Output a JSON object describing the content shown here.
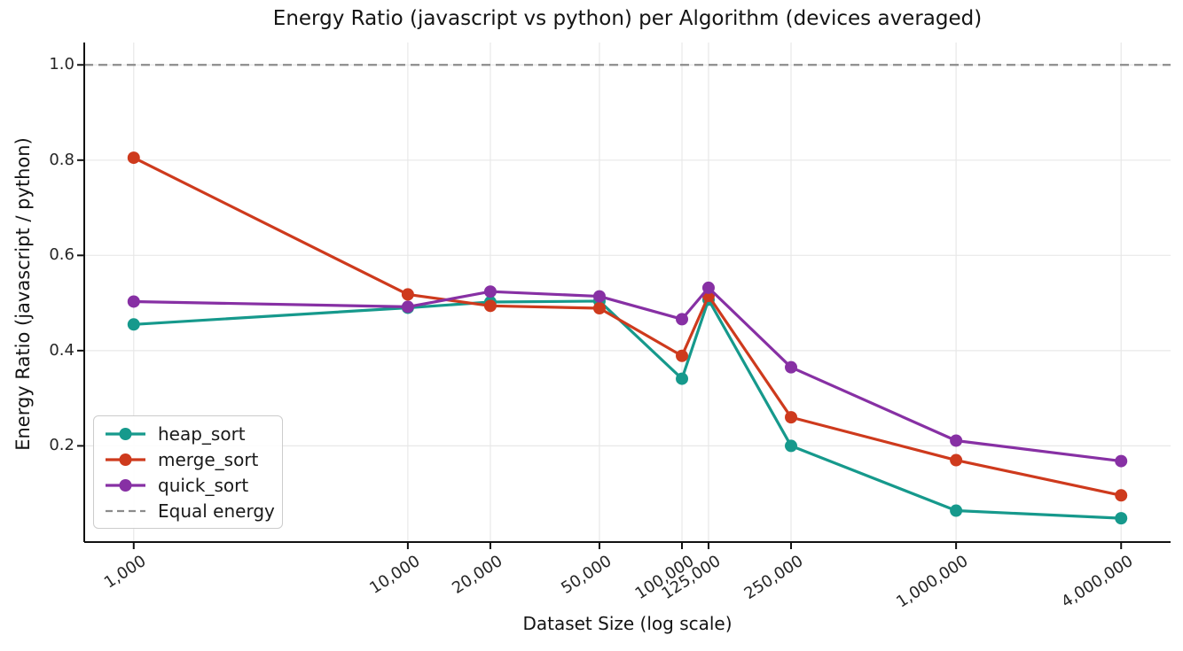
{
  "chart_data": {
    "type": "line",
    "title": "Energy Ratio (javascript vs python) per Algorithm (devices averaged)",
    "xlabel": "Dataset Size (log scale)",
    "ylabel": "Energy Ratio (javascript / python)",
    "x_scale": "log",
    "x": [
      1000,
      10000,
      20000,
      50000,
      100000,
      125000,
      250000,
      1000000,
      4000000
    ],
    "x_tick_labels": [
      "1,000",
      "10,000",
      "20,000",
      "50,000",
      "100,000",
      "125,000",
      "250,000",
      "1,000,000",
      "4,000,000"
    ],
    "y_ticks": [
      0.2,
      0.4,
      0.6,
      0.8,
      1.0
    ],
    "y_tick_labels": [
      "0.2",
      "0.4",
      "0.6",
      "0.8",
      "1.0"
    ],
    "xlim": [
      660,
      6060000
    ],
    "ylim": [
      -0.002,
      1.047
    ],
    "grid": true,
    "legend_position": "lower left",
    "series": [
      {
        "name": "heap_sort",
        "color": "#16998C",
        "marker": "circle",
        "values": [
          0.455,
          0.49,
          0.502,
          0.504,
          0.341,
          0.507,
          0.2,
          0.064,
          0.048
        ]
      },
      {
        "name": "merge_sort",
        "color": "#CE3A1D",
        "marker": "circle",
        "values": [
          0.805,
          0.518,
          0.494,
          0.489,
          0.389,
          0.515,
          0.26,
          0.17,
          0.096
        ]
      },
      {
        "name": "quick_sort",
        "color": "#8730A4",
        "marker": "circle",
        "values": [
          0.503,
          0.492,
          0.524,
          0.514,
          0.466,
          0.532,
          0.365,
          0.211,
          0.168
        ]
      }
    ],
    "reference_line": {
      "label": "Equal energy",
      "value": 1.0,
      "color": "#8C8C8C",
      "style": "dashed"
    },
    "legend_items": [
      "heap_sort",
      "merge_sort",
      "quick_sort",
      "Equal energy"
    ]
  },
  "style": {
    "grid_color": "#E8E8E8",
    "spine_color": "#111111",
    "tick_color": "#262626",
    "background": "#FFFFFF"
  }
}
